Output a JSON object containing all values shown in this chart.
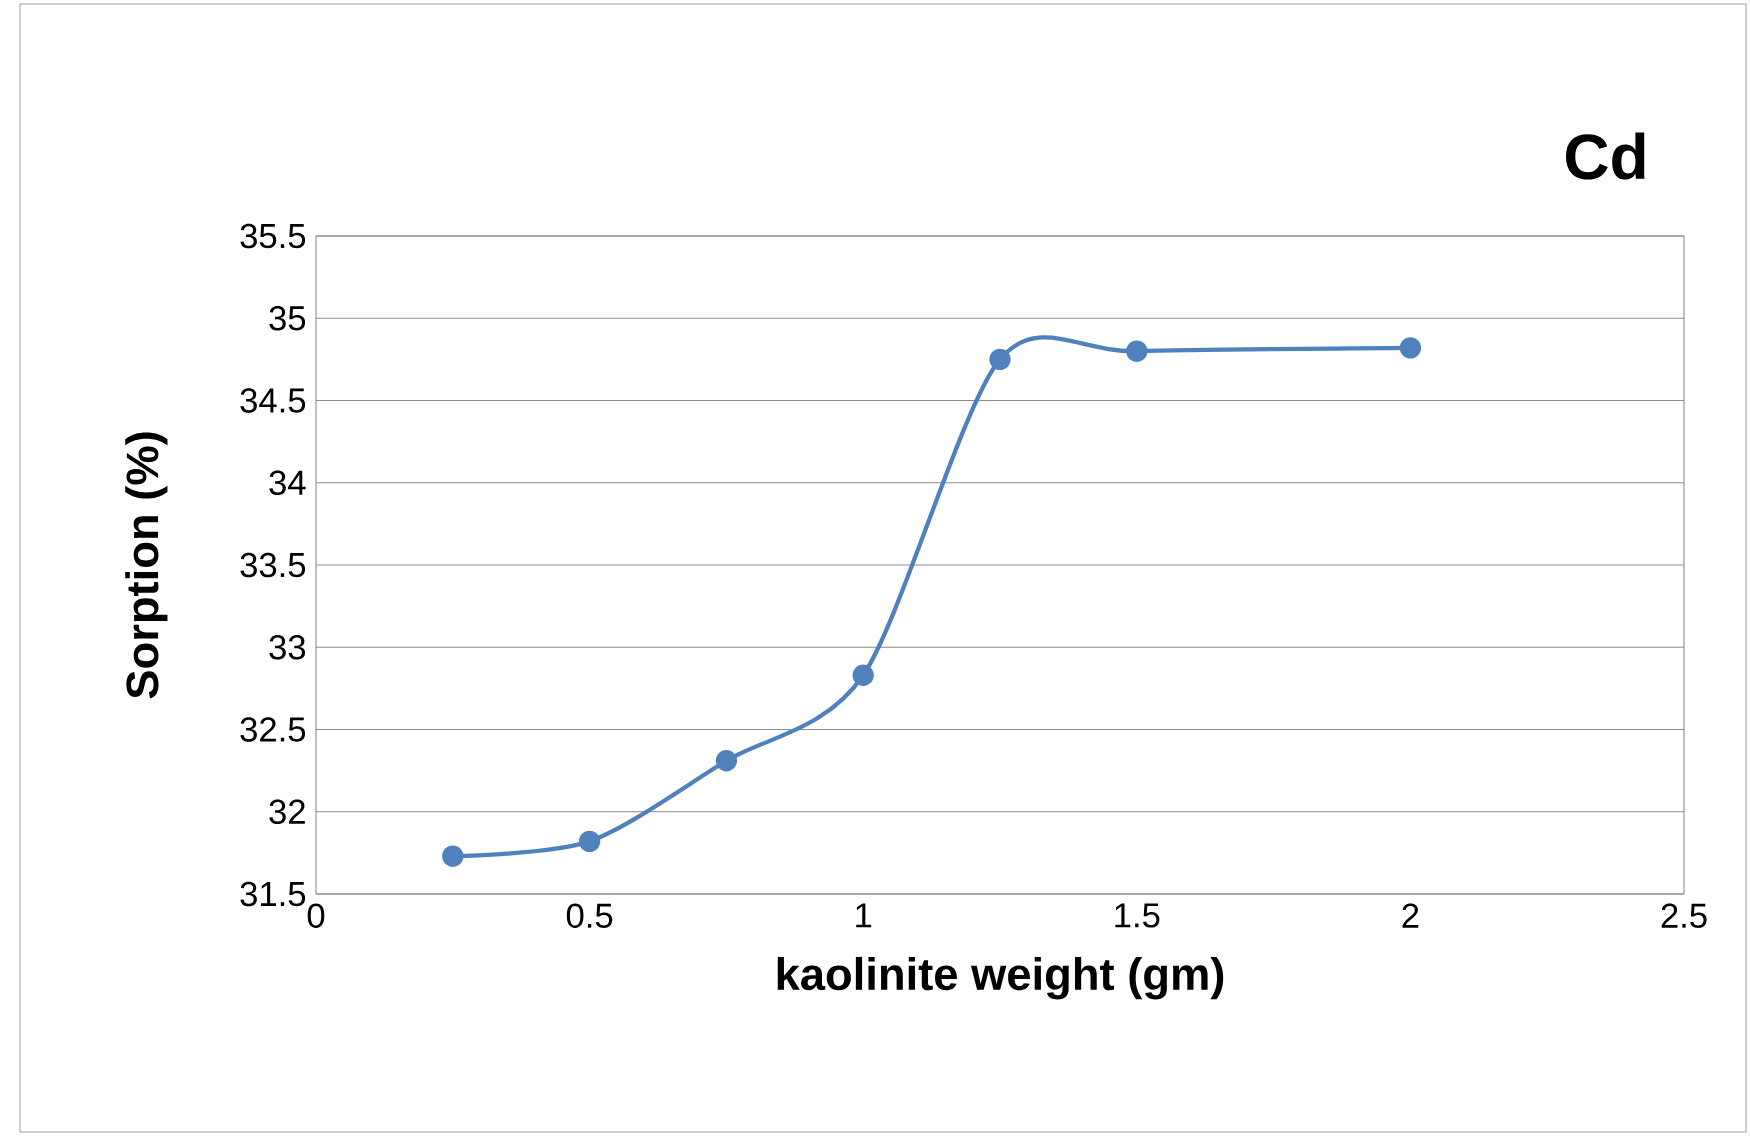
{
  "chart_data": {
    "type": "line",
    "title": "Cd",
    "xlabel": "kaolinite weight (gm)",
    "ylabel": "Sorption (%)",
    "x": [
      0.25,
      0.5,
      0.75,
      1,
      1.25,
      1.5,
      2
    ],
    "series": [
      {
        "color": "#4f81bd",
        "values": [
          31.73,
          31.82,
          32.31,
          32.83,
          34.75,
          34.8,
          34.82
        ]
      }
    ],
    "xlim": [
      0,
      2.5
    ],
    "xticks": [
      0,
      0.5,
      1,
      1.5,
      2,
      2.5
    ],
    "ylim": [
      31.5,
      35.5
    ],
    "yticks": [
      31.5,
      32,
      32.5,
      33,
      33.5,
      34,
      34.5,
      35,
      35.5
    ],
    "grid": "y",
    "marker": "circle",
    "line_style": "solid"
  }
}
